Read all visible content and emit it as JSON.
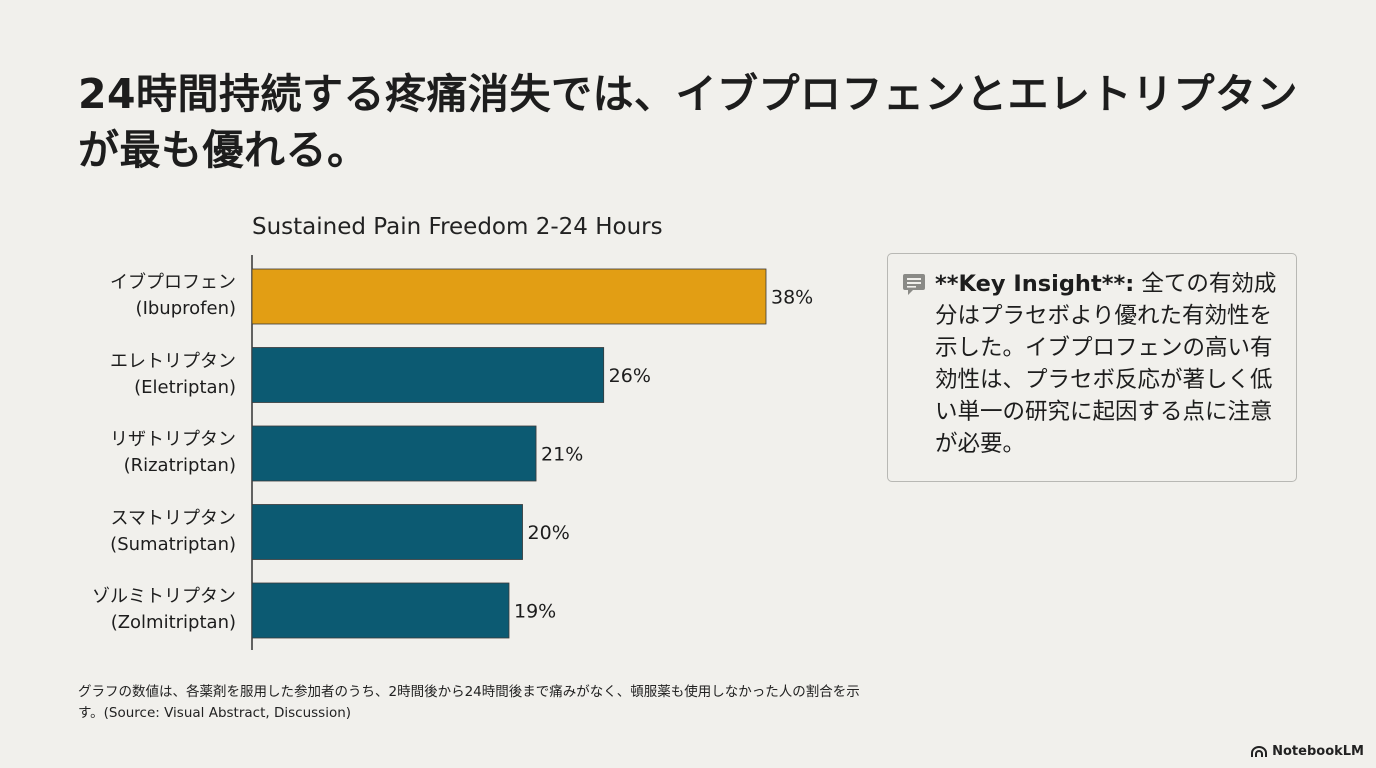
{
  "title": "24時間持続する疼痛消失では、イブプロフェンとエレトリプタンが最も優れる。",
  "chart_data": {
    "type": "bar",
    "orientation": "horizontal",
    "title": "Sustained Pain Freedom 2-24 Hours",
    "categories": [
      {
        "ja": "イブプロフェン",
        "en": "(Ibuprofen)"
      },
      {
        "ja": "エレトリプタン",
        "en": "(Eletriptan)"
      },
      {
        "ja": "リザトリプタン",
        "en": "(Rizatriptan)"
      },
      {
        "ja": "スマトリプタン",
        "en": "(Sumatriptan)"
      },
      {
        "ja": "ゾルミトリプタン",
        "en": "(Zolmitriptan)"
      }
    ],
    "values": [
      38,
      26,
      21,
      20,
      19
    ],
    "value_labels": [
      "38%",
      "26%",
      "21%",
      "20%",
      "19%"
    ],
    "unit": "%",
    "colors": [
      "#e29e14",
      "#0c5a72",
      "#0c5a72",
      "#0c5a72",
      "#0c5a72"
    ],
    "grid": false,
    "legend": "none"
  },
  "insight": {
    "bold": "**Key Insight**:",
    "text": " 全ての有効成分はプラセボより優れた有効性を示した。イブプロフェンの高い有効性は、プラセボ反応が著しく低い単一の研究に起因する点に注意が必要。",
    "icon": "comment-icon"
  },
  "footnote": "グラフの数値は、各薬剤を服用した参加者のうち、2時間後から24時間後まで痛みがなく、頓服薬も使用しなかった人の割合を示す。(Source: Visual Abstract, Discussion)",
  "brand": "NotebookLM"
}
